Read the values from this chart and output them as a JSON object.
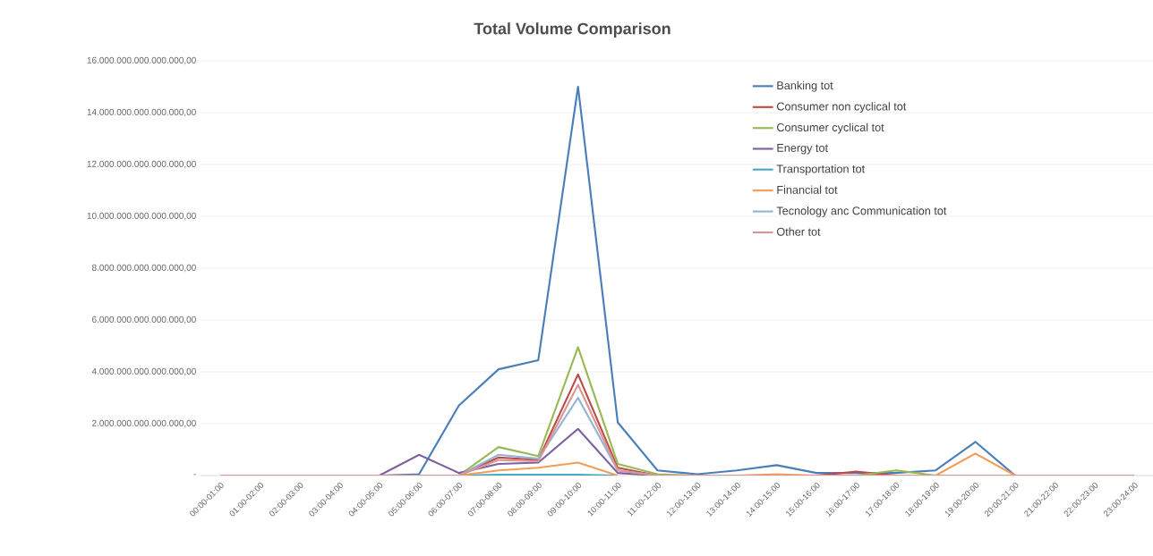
{
  "chart_data": {
    "type": "line",
    "title": "Total Volume Comparison",
    "categories": [
      "00:00-01:00",
      "01:00-02:00",
      "02:00-03:00",
      "03:00-04:00",
      "04:00-05:00",
      "05:00-06:00",
      "06:00-07:00",
      "07:00-08:00",
      "08:00-09:00",
      "09:00-10:00",
      "10:00-11:00",
      "11:00-12:00",
      "12:00-13:00",
      "13:00-14:00",
      "14:00-15:00",
      "15:00-16:00",
      "16:00-17:00",
      "17:00-18:00",
      "18:00-19:00",
      "19:00-20:00",
      "20:00-21:00",
      "21:00-22:00",
      "22:00-23:00",
      "23:00-24:00"
    ],
    "series": [
      {
        "name": "Banking tot",
        "color": "#4a7ebb",
        "values": [
          null,
          null,
          null,
          null,
          0,
          50000000000000.0,
          2700000000000000.0,
          4100000000000000.0,
          4450000000000000.0,
          1.5e+16,
          2050000000000000.0,
          200000000000000.0,
          50000000000000.0,
          200000000000000.0,
          400000000000000.0,
          100000000000000.0,
          100000000000000.0,
          100000000000000.0,
          200000000000000.0,
          1300000000000000.0,
          0,
          null,
          null,
          null
        ]
      },
      {
        "name": "Consumer non cyclical tot",
        "color": "#be4b48",
        "values": [
          null,
          null,
          null,
          null,
          null,
          null,
          0,
          700000000000000.0,
          600000000000000.0,
          3900000000000000.0,
          300000000000000.0,
          0,
          null,
          null,
          null,
          0,
          150000000000000.0,
          0,
          null,
          null,
          null,
          null,
          null,
          null
        ]
      },
      {
        "name": "Consumer cyclical tot",
        "color": "#98b954",
        "values": [
          null,
          null,
          null,
          null,
          null,
          null,
          0,
          1100000000000000.0,
          750000000000000.0,
          4950000000000000.0,
          450000000000000.0,
          50000000000000.0,
          0,
          null,
          null,
          null,
          0,
          200000000000000.0,
          0,
          null,
          null,
          null,
          null,
          null
        ]
      },
      {
        "name": "Energy tot",
        "color": "#7d60a0",
        "values": [
          null,
          null,
          null,
          null,
          0,
          800000000000000.0,
          100000000000000.0,
          450000000000000.0,
          500000000000000.0,
          1800000000000000.0,
          100000000000000.0,
          0,
          null,
          null,
          null,
          null,
          null,
          null,
          null,
          null,
          null,
          null,
          null,
          null
        ]
      },
      {
        "name": "Transportation tot",
        "color": "#46aac5",
        "values": [
          null,
          null,
          null,
          null,
          null,
          null,
          0,
          30000000000000.0,
          30000000000000.0,
          30000000000000.0,
          0,
          null,
          null,
          null,
          null,
          null,
          null,
          null,
          null,
          null,
          null,
          null,
          null,
          null
        ]
      },
      {
        "name": "Financial tot",
        "color": "#f59d56",
        "values": [
          null,
          null,
          null,
          null,
          null,
          null,
          0,
          200000000000000.0,
          300000000000000.0,
          500000000000000.0,
          0,
          null,
          null,
          0,
          50000000000000.0,
          0,
          null,
          null,
          0,
          850000000000000.0,
          0,
          null,
          null,
          null
        ]
      },
      {
        "name": "Tecnology anc Communication tot",
        "color": "#95b3d7",
        "values": [
          null,
          null,
          null,
          null,
          null,
          null,
          0,
          800000000000000.0,
          650000000000000.0,
          3000000000000000.0,
          200000000000000.0,
          0,
          null,
          null,
          null,
          null,
          null,
          null,
          null,
          null,
          null,
          null,
          null,
          null
        ]
      },
      {
        "name": "Other tot",
        "color": "#d99694",
        "values": [
          0,
          0,
          0,
          0,
          0,
          0,
          0,
          600000000000000.0,
          550000000000000.0,
          3500000000000000.0,
          200000000000000.0,
          0,
          0,
          0,
          0,
          0,
          0,
          0,
          0,
          0,
          0,
          0,
          0,
          0
        ]
      }
    ],
    "ylim": [
      0,
      1.6e+16
    ],
    "yticks": [
      {
        "value": 0,
        "label": "-"
      },
      {
        "value": 2000000000000000.0,
        "label": "2.000.000.000.000.000,00"
      },
      {
        "value": 4000000000000000.0,
        "label": "4.000.000.000.000.000,00"
      },
      {
        "value": 6000000000000000.0,
        "label": "6.000.000.000.000.000,00"
      },
      {
        "value": 8000000000000000.0,
        "label": "8.000.000.000.000.000,00"
      },
      {
        "value": 1e+16,
        "label": "10.000.000.000.000.000,00"
      },
      {
        "value": 1.2e+16,
        "label": "12.000.000.000.000.000,00"
      },
      {
        "value": 1.4e+16,
        "label": "14.000.000.000.000.000,00"
      },
      {
        "value": 1.6e+16,
        "label": "16.000.000.000.000.000,00"
      }
    ],
    "grid": "y",
    "legend": "top right"
  }
}
